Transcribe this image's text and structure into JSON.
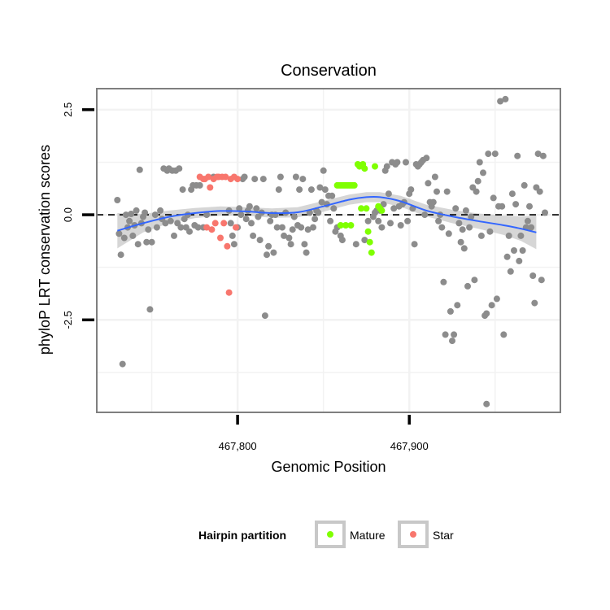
{
  "chart_data": {
    "type": "scatter",
    "title": "Conservation",
    "xlabel": "Genomic Position",
    "ylabel": "phyloP LRT conservation scores",
    "xlim": [
      467718,
      467988
    ],
    "ylim": [
      -4.7,
      3.0
    ],
    "x_ticks": [
      467800,
      467900
    ],
    "x_tick_labels": [
      "467,800",
      "467,900"
    ],
    "y_ticks": [
      -2.5,
      0.0,
      2.5
    ],
    "y_tick_labels": [
      "-2.5",
      "0.0",
      "2.5"
    ],
    "grid": true,
    "reference_line": {
      "y": 0,
      "style": "dashed",
      "color": "#000000"
    },
    "legend": {
      "title": "Hairpin partition",
      "placement": "bottom",
      "entries": [
        {
          "label": "Mature",
          "color": "#7fff00"
        },
        {
          "label": "Star",
          "color": "#f8766d"
        }
      ]
    },
    "colors": {
      "other": "#8c8c8c",
      "Mature": "#7fff00",
      "Star": "#f8766d",
      "smooth_line": "#3366ff",
      "smooth_band": "#c8c8c8"
    },
    "smooth": {
      "x": [
        467730,
        467745,
        467760,
        467775,
        467790,
        467805,
        467820,
        467835,
        467850,
        467865,
        467875,
        467883,
        467895,
        467910,
        467925,
        467940,
        467955,
        467965,
        467974
      ],
      "y": [
        -0.38,
        -0.2,
        -0.05,
        0.04,
        0.09,
        0.08,
        0.04,
        0.06,
        0.2,
        0.36,
        0.42,
        0.42,
        0.32,
        0.1,
        -0.04,
        -0.15,
        -0.25,
        -0.33,
        -0.42
      ],
      "lower": [
        -0.8,
        -0.42,
        -0.2,
        -0.08,
        -0.02,
        -0.02,
        -0.07,
        -0.06,
        0.07,
        0.24,
        0.3,
        0.3,
        0.19,
        -0.04,
        -0.2,
        -0.33,
        -0.48,
        -0.62,
        -0.82
      ],
      "upper": [
        0.04,
        0.02,
        0.1,
        0.16,
        0.2,
        0.18,
        0.15,
        0.18,
        0.33,
        0.48,
        0.54,
        0.54,
        0.45,
        0.24,
        0.12,
        0.03,
        -0.02,
        -0.04,
        -0.02
      ]
    },
    "points": {
      "other": [
        [
          467730,
          0.35
        ],
        [
          467731,
          -0.45
        ],
        [
          467732,
          -0.95
        ],
        [
          467733,
          -3.55
        ],
        [
          467734,
          -0.55
        ],
        [
          467735,
          0.0
        ],
        [
          467736,
          -0.3
        ],
        [
          467737,
          -0.15
        ],
        [
          467738,
          0.02
        ],
        [
          467739,
          -0.5
        ],
        [
          467740,
          -0.25
        ],
        [
          467741,
          0.1
        ],
        [
          467742,
          -0.7
        ],
        [
          467743,
          1.07
        ],
        [
          467744,
          -0.2
        ],
        [
          467745,
          -0.05
        ],
        [
          467746,
          0.05
        ],
        [
          467747,
          -0.65
        ],
        [
          467748,
          -0.35
        ],
        [
          467749,
          -2.25
        ],
        [
          467750,
          -0.65
        ],
        [
          467752,
          0.0
        ],
        [
          467753,
          -0.3
        ],
        [
          467755,
          0.1
        ],
        [
          467756,
          -0.1
        ],
        [
          467757,
          1.1
        ],
        [
          467758,
          -0.2
        ],
        [
          467759,
          1.05
        ],
        [
          467760,
          1.1
        ],
        [
          467761,
          -0.15
        ],
        [
          467762,
          1.05
        ],
        [
          467763,
          -0.5
        ],
        [
          467764,
          1.05
        ],
        [
          467765,
          -0.2
        ],
        [
          467766,
          1.1
        ],
        [
          467767,
          -0.3
        ],
        [
          467768,
          0.6
        ],
        [
          467769,
          -0.1
        ],
        [
          467770,
          -0.3
        ],
        [
          467771,
          0.0
        ],
        [
          467772,
          -0.4
        ],
        [
          467773,
          0.6
        ],
        [
          467774,
          0.7
        ],
        [
          467775,
          -0.25
        ],
        [
          467776,
          0.7
        ],
        [
          467777,
          -0.3
        ],
        [
          467778,
          0.7
        ],
        [
          467780,
          -0.3
        ],
        [
          467782,
          0.0
        ],
        [
          467786,
          0.9
        ],
        [
          467795,
          0.1
        ],
        [
          467796,
          -0.2
        ],
        [
          467797,
          -0.5
        ],
        [
          467798,
          -0.7
        ],
        [
          467800,
          -0.3
        ],
        [
          467801,
          0.15
        ],
        [
          467802,
          0.0
        ],
        [
          467803,
          0.85
        ],
        [
          467804,
          0.9
        ],
        [
          467805,
          -0.1
        ],
        [
          467806,
          0.1
        ],
        [
          467807,
          0.2
        ],
        [
          467808,
          -0.2
        ],
        [
          467809,
          -0.5
        ],
        [
          467810,
          0.85
        ],
        [
          467811,
          0.15
        ],
        [
          467812,
          -0.05
        ],
        [
          467813,
          -0.6
        ],
        [
          467814,
          0.05
        ],
        [
          467815,
          0.85
        ],
        [
          467816,
          -2.4
        ],
        [
          467817,
          -0.95
        ],
        [
          467818,
          -0.75
        ],
        [
          467819,
          -0.15
        ],
        [
          467820,
          0.0
        ],
        [
          467821,
          -0.9
        ],
        [
          467822,
          0.0
        ],
        [
          467823,
          -0.3
        ],
        [
          467824,
          0.6
        ],
        [
          467825,
          0.9
        ],
        [
          467826,
          -0.3
        ],
        [
          467827,
          -0.5
        ],
        [
          467828,
          0.05
        ],
        [
          467830,
          -0.55
        ],
        [
          467831,
          -0.7
        ],
        [
          467832,
          -0.35
        ],
        [
          467833,
          -0.05
        ],
        [
          467834,
          0.9
        ],
        [
          467835,
          -0.25
        ],
        [
          467836,
          0.6
        ],
        [
          467837,
          -0.3
        ],
        [
          467838,
          0.85
        ],
        [
          467839,
          -0.7
        ],
        [
          467840,
          -0.9
        ],
        [
          467841,
          -0.35
        ],
        [
          467842,
          0.05
        ],
        [
          467843,
          0.6
        ],
        [
          467844,
          -0.3
        ],
        [
          467845,
          -0.1
        ],
        [
          467846,
          0.1
        ],
        [
          467847,
          0.05
        ],
        [
          467848,
          0.65
        ],
        [
          467849,
          0.3
        ],
        [
          467850,
          1.05
        ],
        [
          467851,
          0.6
        ],
        [
          467852,
          0.25
        ],
        [
          467853,
          0.45
        ],
        [
          467854,
          -0.15
        ],
        [
          467855,
          0.45
        ],
        [
          467856,
          0.15
        ],
        [
          467857,
          -0.4
        ],
        [
          467858,
          -0.3
        ],
        [
          467860,
          -0.5
        ],
        [
          467861,
          -0.6
        ],
        [
          467869,
          -0.7
        ],
        [
          467874,
          -0.6
        ],
        [
          467876,
          -0.15
        ],
        [
          467879,
          -0.05
        ],
        [
          467880,
          0.05
        ],
        [
          467881,
          0.1
        ],
        [
          467882,
          -0.15
        ],
        [
          467883,
          0.1
        ],
        [
          467884,
          -0.3
        ],
        [
          467885,
          0.25
        ],
        [
          467886,
          1.05
        ],
        [
          467887,
          1.15
        ],
        [
          467888,
          0.5
        ],
        [
          467889,
          -0.2
        ],
        [
          467890,
          1.25
        ],
        [
          467891,
          0.15
        ],
        [
          467892,
          1.2
        ],
        [
          467893,
          1.25
        ],
        [
          467894,
          0.2
        ],
        [
          467895,
          -0.25
        ],
        [
          467896,
          0.25
        ],
        [
          467897,
          0.3
        ],
        [
          467898,
          1.25
        ],
        [
          467899,
          -0.15
        ],
        [
          467900,
          0.5
        ],
        [
          467901,
          0.6
        ],
        [
          467902,
          0.15
        ],
        [
          467903,
          -0.7
        ],
        [
          467904,
          1.2
        ],
        [
          467905,
          1.15
        ],
        [
          467906,
          1.2
        ],
        [
          467907,
          1.25
        ],
        [
          467908,
          1.3
        ],
        [
          467909,
          0.0
        ],
        [
          467910,
          1.35
        ],
        [
          467911,
          0.75
        ],
        [
          467912,
          0.3
        ],
        [
          467913,
          0.2
        ],
        [
          467914,
          0.3
        ],
        [
          467915,
          0.9
        ],
        [
          467916,
          0.55
        ],
        [
          467917,
          -0.15
        ],
        [
          467918,
          0.0
        ],
        [
          467919,
          -0.3
        ],
        [
          467920,
          -1.6
        ],
        [
          467921,
          -2.85
        ],
        [
          467922,
          0.55
        ],
        [
          467923,
          -0.45
        ],
        [
          467924,
          -2.3
        ],
        [
          467925,
          -3.0
        ],
        [
          467926,
          -2.85
        ],
        [
          467927,
          0.15
        ],
        [
          467928,
          -2.15
        ],
        [
          467929,
          -0.2
        ],
        [
          467930,
          -0.65
        ],
        [
          467931,
          -0.35
        ],
        [
          467932,
          -0.8
        ],
        [
          467933,
          0.1
        ],
        [
          467934,
          -1.7
        ],
        [
          467935,
          -0.3
        ],
        [
          467936,
          -0.05
        ],
        [
          467937,
          0.65
        ],
        [
          467938,
          -1.55
        ],
        [
          467939,
          0.55
        ],
        [
          467940,
          0.8
        ],
        [
          467941,
          1.25
        ],
        [
          467942,
          -0.5
        ],
        [
          467943,
          1.0
        ],
        [
          467944,
          -2.4
        ],
        [
          467945,
          -2.35
        ],
        [
          467946,
          1.45
        ],
        [
          467947,
          -0.4
        ],
        [
          467948,
          -2.15
        ],
        [
          467949,
          0.4
        ],
        [
          467950,
          1.45
        ],
        [
          467951,
          -2.0
        ],
        [
          467952,
          0.2
        ],
        [
          467953,
          2.7
        ],
        [
          467954,
          0.2
        ],
        [
          467955,
          -2.85
        ],
        [
          467956,
          2.75
        ],
        [
          467957,
          -1.0
        ],
        [
          467958,
          -0.5
        ],
        [
          467959,
          -1.35
        ],
        [
          467960,
          0.5
        ],
        [
          467961,
          -0.85
        ],
        [
          467962,
          0.25
        ],
        [
          467963,
          1.4
        ],
        [
          467964,
          -1.1
        ],
        [
          467965,
          -0.5
        ],
        [
          467966,
          -0.85
        ],
        [
          467967,
          0.7
        ],
        [
          467968,
          -0.3
        ],
        [
          467969,
          -0.15
        ],
        [
          467970,
          0.2
        ],
        [
          467971,
          -0.3
        ],
        [
          467972,
          -1.45
        ],
        [
          467973,
          -2.1
        ],
        [
          467974,
          0.65
        ],
        [
          467975,
          1.45
        ],
        [
          467976,
          0.55
        ],
        [
          467977,
          -1.55
        ],
        [
          467978,
          1.4
        ],
        [
          467979,
          0.05
        ],
        [
          467945,
          -4.5
        ]
      ],
      "Star": [
        [
          467778,
          0.9
        ],
        [
          467780,
          0.85
        ],
        [
          467781,
          0.85
        ],
        [
          467782,
          -0.3
        ],
        [
          467783,
          0.9
        ],
        [
          467784,
          0.65
        ],
        [
          467785,
          -0.35
        ],
        [
          467786,
          0.85
        ],
        [
          467787,
          -0.2
        ],
        [
          467788,
          0.9
        ],
        [
          467789,
          0.9
        ],
        [
          467790,
          -0.55
        ],
        [
          467791,
          0.9
        ],
        [
          467792,
          -0.2
        ],
        [
          467793,
          0.9
        ],
        [
          467794,
          -0.75
        ],
        [
          467795,
          -1.85
        ],
        [
          467796,
          0.85
        ],
        [
          467798,
          0.9
        ],
        [
          467799,
          -0.3
        ],
        [
          467800,
          0.85
        ]
      ],
      "Mature": [
        [
          467858,
          0.7
        ],
        [
          467859,
          0.7
        ],
        [
          467860,
          0.7
        ],
        [
          467861,
          0.7
        ],
        [
          467862,
          0.7
        ],
        [
          467863,
          0.7
        ],
        [
          467864,
          0.7
        ],
        [
          467865,
          0.7
        ],
        [
          467866,
          0.7
        ],
        [
          467867,
          0.7
        ],
        [
          467860,
          -0.25
        ],
        [
          467863,
          -0.25
        ],
        [
          467866,
          -0.25
        ],
        [
          467868,
          0.7
        ],
        [
          467870,
          1.2
        ],
        [
          467871,
          1.15
        ],
        [
          467872,
          0.15
        ],
        [
          467873,
          1.2
        ],
        [
          467874,
          1.1
        ],
        [
          467875,
          0.15
        ],
        [
          467876,
          -0.4
        ],
        [
          467877,
          -0.65
        ],
        [
          467878,
          -0.9
        ],
        [
          467880,
          1.15
        ],
        [
          467882,
          0.2
        ],
        [
          467883,
          0.15
        ],
        [
          467884,
          0.1
        ]
      ]
    }
  }
}
